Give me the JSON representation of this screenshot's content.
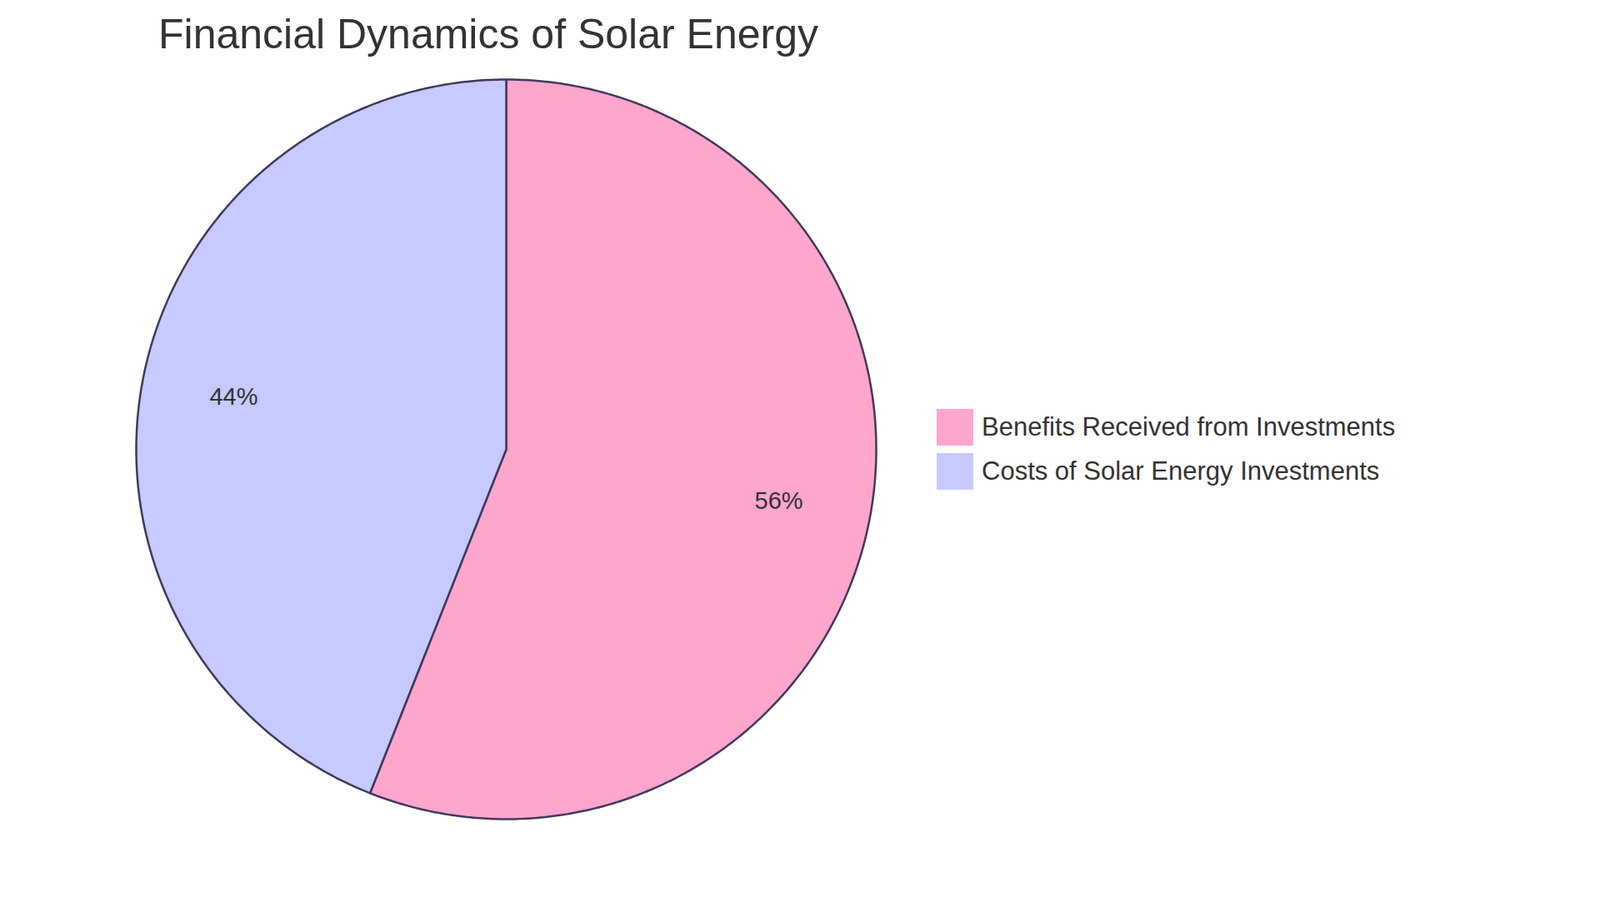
{
  "chart_data": {
    "type": "pie",
    "title": "Financial Dynamics of Solar Energy",
    "categories": [
      "Benefits Received from Investments",
      "Costs of Solar Energy Investments"
    ],
    "values": [
      56,
      44
    ],
    "value_labels": [
      "56%",
      "44%"
    ],
    "colors": [
      "#ffa6cd",
      "#c6caff"
    ],
    "data_labels": true,
    "legend": "right"
  }
}
